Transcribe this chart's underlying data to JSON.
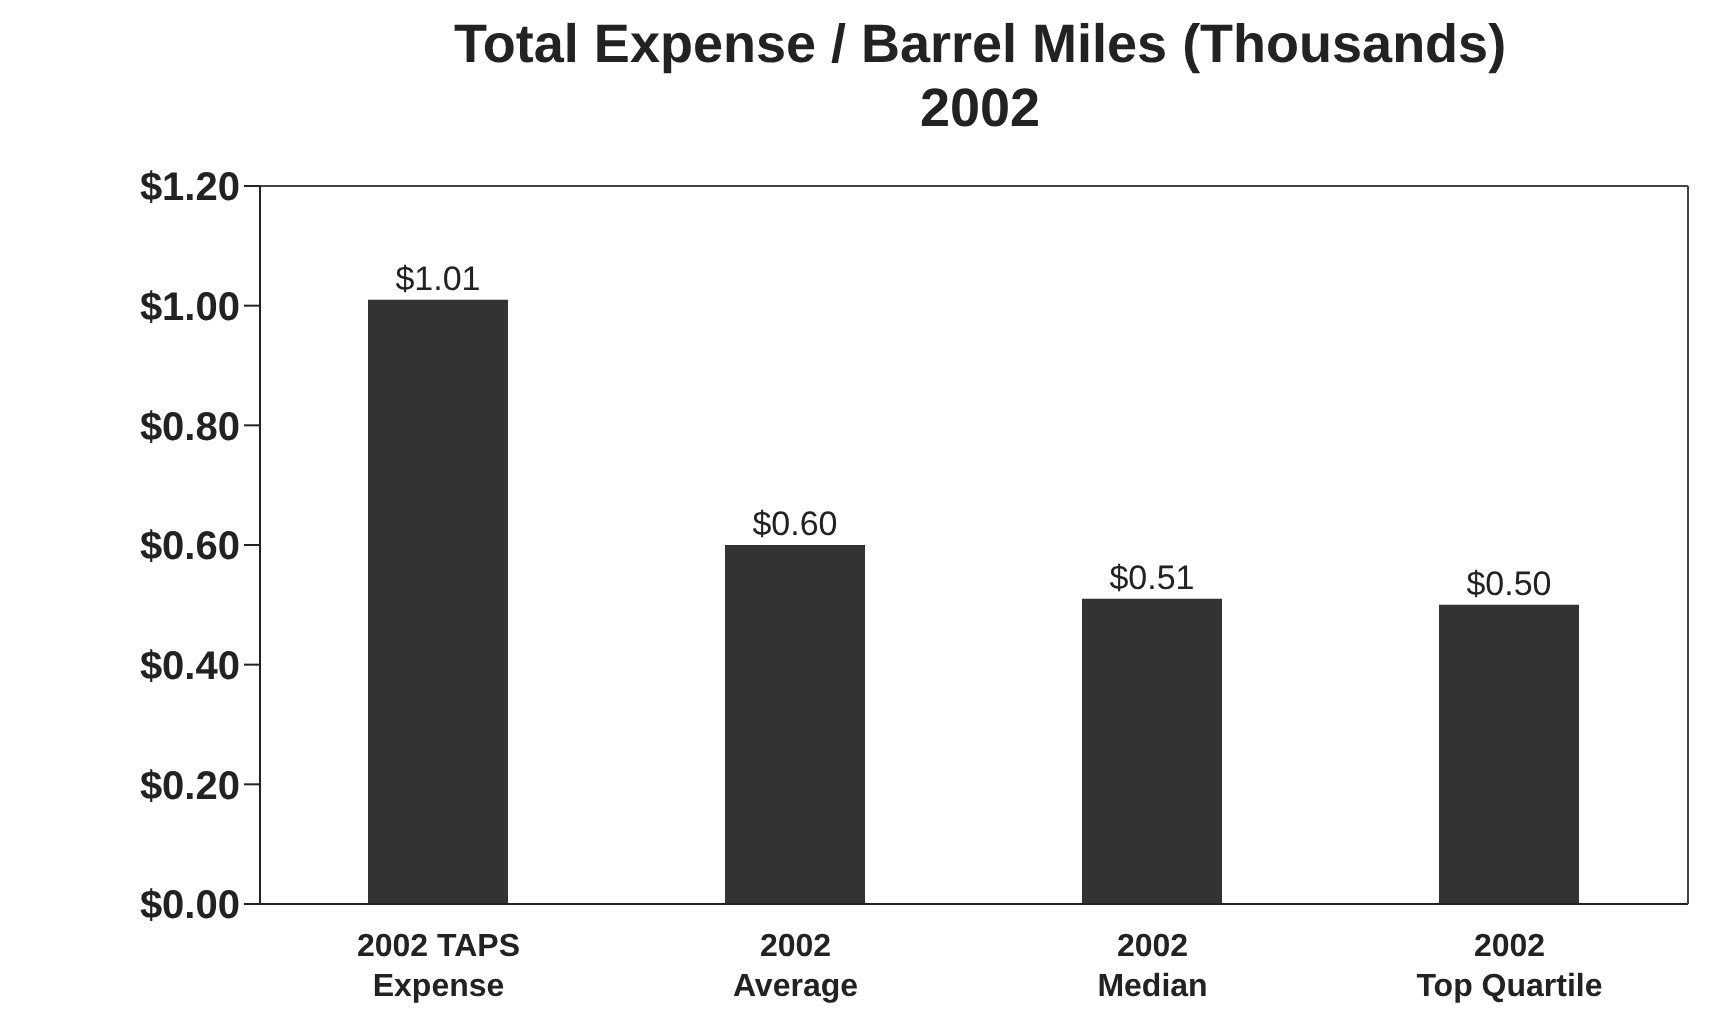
{
  "chart_data": {
    "type": "bar",
    "title": "Total Expense / Barrel Miles (Thousands)\n2002",
    "categories": [
      "2002 TAPS\nExpense",
      "2002\nAverage",
      "2002\nMedian",
      "2002\nTop Quartile"
    ],
    "values": [
      1.01,
      0.6,
      0.51,
      0.5
    ],
    "color": "#333333",
    "value_labels": [
      "$1.01",
      "$0.60",
      "$0.51",
      "$0.50"
    ],
    "ylim": [
      0,
      1.2
    ],
    "yticks": [
      {
        "value": 0,
        "label": "$0.00"
      },
      {
        "value": 0.2,
        "label": "$0.20"
      },
      {
        "value": 0.4,
        "label": "$0.40"
      },
      {
        "value": 0.6,
        "label": "$0.60"
      },
      {
        "value": 0.8,
        "label": "$0.80"
      },
      {
        "value": 1.0,
        "label": "$1.00"
      },
      {
        "value": 1.2,
        "label": "$1.20"
      }
    ],
    "grid": false
  }
}
